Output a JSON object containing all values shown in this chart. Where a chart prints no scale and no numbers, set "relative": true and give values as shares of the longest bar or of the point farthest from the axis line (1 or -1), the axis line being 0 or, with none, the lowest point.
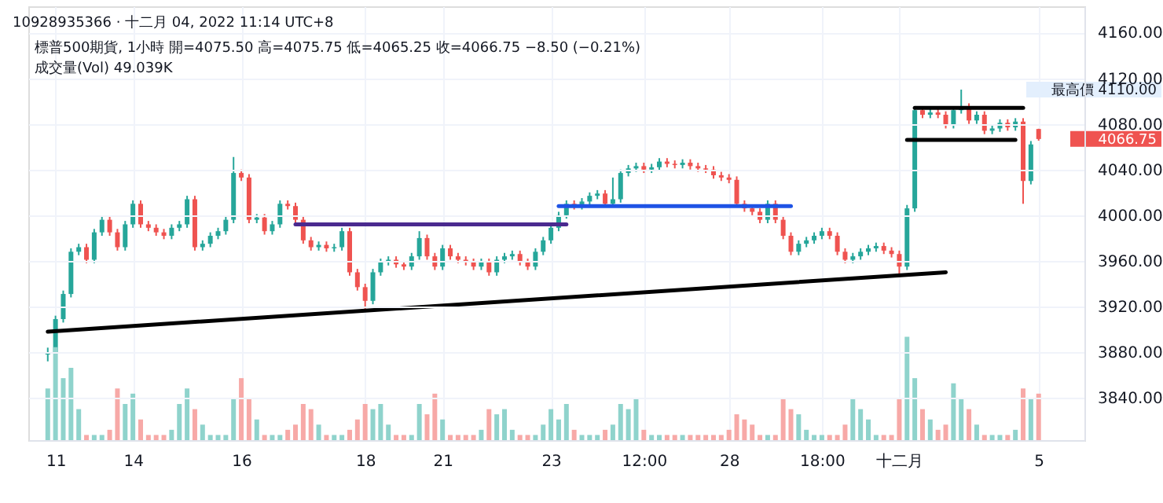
{
  "chart_data": [
    {
      "type": "candlestick",
      "title": "10928935366 · 十二月 04, 2022 11:14 UTC+8",
      "subtitle": "標普500期貨, 1小時  開=4075.50 高=4075.75 低=4065.25 收=4066.75 −8.50 (−0.21%)",
      "annotations": [
        "成交量(Vol) 49.039K",
        "4066.75",
        "最高價 4110.00"
      ],
      "categories": [
        null,
        "11",
        null,
        null,
        null,
        null,
        null,
        null,
        null,
        null,
        null,
        "14",
        null,
        null,
        null,
        null,
        null,
        null,
        null,
        null,
        null,
        null,
        null,
        null,
        null,
        "16",
        null,
        null,
        null,
        null,
        null,
        null,
        null,
        null,
        null,
        null,
        null,
        null,
        null,
        null,
        null,
        "18",
        null,
        null,
        null,
        null,
        null,
        null,
        null,
        null,
        null,
        "21",
        null,
        null,
        null,
        null,
        null,
        null,
        null,
        null,
        null,
        null,
        null,
        null,
        null,
        "23",
        null,
        null,
        null,
        null,
        null,
        null,
        null,
        null,
        null,
        null,
        null,
        "12:00",
        null,
        null,
        null,
        null,
        null,
        null,
        null,
        null,
        null,
        null,
        "28",
        null,
        null,
        null,
        null,
        null,
        null,
        null,
        null,
        null,
        null,
        null,
        "18:00",
        null,
        null,
        null,
        null,
        null,
        null,
        null,
        null,
        null,
        "十二月",
        null,
        null,
        null,
        null,
        null,
        null,
        null,
        null,
        null,
        null,
        null,
        null,
        null,
        null,
        null,
        null,
        null,
        "5"
      ],
      "ohlc": [
        [
          3878,
          3884,
          3872,
          3880
        ],
        [
          3880,
          3912,
          3877,
          3909
        ],
        [
          3909,
          3934,
          3906,
          3931
        ],
        [
          3931,
          3971,
          3928,
          3968
        ],
        [
          3968,
          3975,
          3965,
          3972
        ],
        [
          3972,
          3975,
          3958,
          3961
        ],
        [
          3961,
          3988,
          3958,
          3985
        ],
        [
          3985,
          3999,
          3982,
          3996
        ],
        [
          3996,
          3999,
          3982,
          3985
        ],
        [
          3985,
          3988,
          3969,
          3972
        ],
        [
          3972,
          3995,
          3969,
          3992
        ],
        [
          3992,
          4013,
          3989,
          4010
        ],
        [
          4010,
          4013,
          3989,
          3992
        ],
        [
          3992,
          3995,
          3986,
          3989
        ],
        [
          3989,
          3992,
          3982,
          3985
        ],
        [
          3985,
          3988,
          3979,
          3982
        ],
        [
          3982,
          3992,
          3979,
          3989
        ],
        [
          3989,
          3995,
          3986,
          3992
        ],
        [
          3992,
          4017,
          3989,
          4014
        ],
        [
          4014,
          4017,
          3969,
          3972
        ],
        [
          3972,
          3978,
          3969,
          3975
        ],
        [
          3975,
          3985,
          3972,
          3982
        ],
        [
          3982,
          3989,
          3979,
          3986
        ],
        [
          3986,
          3999,
          3983,
          3996
        ],
        [
          3996,
          4051,
          3993,
          4037
        ],
        [
          4037,
          4040,
          4030,
          4033
        ],
        [
          4033,
          4036,
          3993,
          3996
        ],
        [
          3996,
          4001,
          3993,
          3998
        ],
        [
          3998,
          4001,
          3983,
          3986
        ],
        [
          3986,
          3995,
          3983,
          3992
        ],
        [
          3992,
          4013,
          3989,
          4010
        ],
        [
          4010,
          4013,
          4005,
          4008
        ],
        [
          4008,
          4011,
          3993,
          3996
        ],
        [
          3996,
          3999,
          3975,
          3978
        ],
        [
          3978,
          3981,
          3969,
          3972
        ],
        [
          3972,
          3977,
          3969,
          3974
        ],
        [
          3974,
          3977,
          3968,
          3971
        ],
        [
          3971,
          3975,
          3968,
          3972
        ],
        [
          3972,
          3989,
          3969,
          3986
        ],
        [
          3986,
          3989,
          3947,
          3950
        ],
        [
          3950,
          3953,
          3934,
          3937
        ],
        [
          3937,
          3940,
          3917,
          3925
        ],
        [
          3925,
          3953,
          3922,
          3950
        ],
        [
          3950,
          3962,
          3947,
          3959
        ],
        [
          3959,
          3964,
          3956,
          3961
        ],
        [
          3961,
          3964,
          3954,
          3957
        ],
        [
          3957,
          3960,
          3952,
          3955
        ],
        [
          3955,
          3967,
          3952,
          3964
        ],
        [
          3964,
          3986,
          3961,
          3980
        ],
        [
          3980,
          3983,
          3961,
          3964
        ],
        [
          3964,
          3967,
          3952,
          3955
        ],
        [
          3955,
          3974,
          3952,
          3971
        ],
        [
          3971,
          3974,
          3961,
          3964
        ],
        [
          3964,
          3967,
          3958,
          3961
        ],
        [
          3961,
          3964,
          3956,
          3959
        ],
        [
          3959,
          3962,
          3952,
          3955
        ],
        [
          3955,
          3962,
          3952,
          3959
        ],
        [
          3959,
          3962,
          3947,
          3950
        ],
        [
          3950,
          3964,
          3947,
          3961
        ],
        [
          3961,
          3967,
          3958,
          3964
        ],
        [
          3964,
          3969,
          3961,
          3966
        ],
        [
          3966,
          3969,
          3956,
          3959
        ],
        [
          3959,
          3962,
          3952,
          3955
        ],
        [
          3955,
          3971,
          3952,
          3968
        ],
        [
          3968,
          3981,
          3965,
          3978
        ],
        [
          3978,
          3992,
          3975,
          3989
        ],
        [
          3989,
          4003,
          3986,
          4000
        ],
        [
          4000,
          4013,
          3997,
          4010
        ],
        [
          4010,
          4013,
          4005,
          4008
        ],
        [
          4008,
          4015,
          4005,
          4012
        ],
        [
          4012,
          4020,
          4009,
          4017
        ],
        [
          4017,
          4022,
          4014,
          4019
        ],
        [
          4019,
          4022,
          4007,
          4010
        ],
        [
          4010,
          4033,
          4007,
          4014
        ],
        [
          4014,
          4040,
          4011,
          4037
        ],
        [
          4037,
          4044,
          4034,
          4041
        ],
        [
          4041,
          4046,
          4038,
          4043
        ],
        [
          4043,
          4046,
          4037,
          4040
        ],
        [
          4040,
          4045,
          4037,
          4042
        ],
        [
          4042,
          4050,
          4039,
          4047
        ],
        [
          4047,
          4050,
          4042,
          4045
        ],
        [
          4045,
          4048,
          4041,
          4044
        ],
        [
          4044,
          4049,
          4041,
          4046
        ],
        [
          4046,
          4049,
          4040,
          4043
        ],
        [
          4043,
          4046,
          4038,
          4041
        ],
        [
          4041,
          4044,
          4037,
          4040
        ],
        [
          4040,
          4043,
          4032,
          4035
        ],
        [
          4035,
          4038,
          4030,
          4033
        ],
        [
          4033,
          4036,
          4028,
          4031
        ],
        [
          4031,
          4034,
          4007,
          4010
        ],
        [
          4010,
          4013,
          4003,
          4006
        ],
        [
          4006,
          4009,
          4000,
          4003
        ],
        [
          4003,
          4006,
          3993,
          3996
        ],
        [
          3996,
          4013,
          3993,
          4010
        ],
        [
          4010,
          4013,
          3993,
          3996
        ],
        [
          3996,
          3999,
          3979,
          3982
        ],
        [
          3982,
          3985,
          3965,
          3968
        ],
        [
          3968,
          3978,
          3965,
          3975
        ],
        [
          3975,
          3981,
          3972,
          3978
        ],
        [
          3978,
          3985,
          3975,
          3982
        ],
        [
          3982,
          3989,
          3979,
          3986
        ],
        [
          3986,
          3989,
          3979,
          3982
        ],
        [
          3982,
          3985,
          3965,
          3968
        ],
        [
          3968,
          3971,
          3958,
          3961
        ],
        [
          3961,
          3967,
          3958,
          3964
        ],
        [
          3964,
          3971,
          3961,
          3968
        ],
        [
          3968,
          3974,
          3965,
          3971
        ],
        [
          3971,
          3976,
          3968,
          3973
        ],
        [
          3973,
          3976,
          3966,
          3969
        ],
        [
          3969,
          3972,
          3963,
          3966
        ],
        [
          3966,
          3969,
          3947,
          3955
        ],
        [
          3955,
          4009,
          3952,
          4006
        ],
        [
          4006,
          4095,
          4003,
          4092
        ],
        [
          4092,
          4095,
          4085,
          4088
        ],
        [
          4088,
          4093,
          4085,
          4090
        ],
        [
          4090,
          4093,
          4085,
          4088
        ],
        [
          4088,
          4091,
          4076,
          4079
        ],
        [
          4079,
          4095,
          4076,
          4092
        ],
        [
          4092,
          4110,
          4089,
          4095
        ],
        [
          4095,
          4098,
          4080,
          4083
        ],
        [
          4083,
          4091,
          4080,
          4088
        ],
        [
          4088,
          4091,
          4071,
          4074
        ],
        [
          4074,
          4079,
          4071,
          4076
        ],
        [
          4076,
          4084,
          4073,
          4081
        ],
        [
          4081,
          4084,
          4074,
          4077
        ],
        [
          4077,
          4085,
          4074,
          4082
        ],
        [
          4082,
          4085,
          4010,
          4030
        ],
        [
          4030,
          4065,
          4027,
          4062
        ],
        [
          4075.5,
          4075.75,
          4065.25,
          4066.75
        ]
      ],
      "colors": [
        "#26a69a",
        "#26a69a",
        "#26a69a",
        "#26a69a",
        "#26a69a",
        "#ef5350",
        "#26a69a",
        "#26a69a",
        "#ef5350",
        "#ef5350",
        "#26a69a",
        "#26a69a",
        "#ef5350",
        "#ef5350",
        "#ef5350",
        "#ef5350",
        "#26a69a",
        "#26a69a",
        "#26a69a",
        "#ef5350",
        "#26a69a",
        "#26a69a",
        "#26a69a",
        "#26a69a",
        "#26a69a",
        "#ef5350",
        "#ef5350",
        "#26a69a",
        "#ef5350",
        "#26a69a",
        "#26a69a",
        "#ef5350",
        "#ef5350",
        "#ef5350",
        "#ef5350",
        "#26a69a",
        "#ef5350",
        "#26a69a",
        "#26a69a",
        "#ef5350",
        "#ef5350",
        "#ef5350",
        "#26a69a",
        "#26a69a",
        "#26a69a",
        "#ef5350",
        "#ef5350",
        "#26a69a",
        "#26a69a",
        "#ef5350",
        "#ef5350",
        "#26a69a",
        "#ef5350",
        "#ef5350",
        "#ef5350",
        "#ef5350",
        "#26a69a",
        "#ef5350",
        "#26a69a",
        "#26a69a",
        "#26a69a",
        "#ef5350",
        "#ef5350",
        "#26a69a",
        "#26a69a",
        "#26a69a",
        "#26a69a",
        "#26a69a",
        "#ef5350",
        "#26a69a",
        "#26a69a",
        "#26a69a",
        "#ef5350",
        "#26a69a",
        "#26a69a",
        "#26a69a",
        "#26a69a",
        "#ef5350",
        "#26a69a",
        "#26a69a",
        "#ef5350",
        "#ef5350",
        "#26a69a",
        "#ef5350",
        "#ef5350",
        "#ef5350",
        "#ef5350",
        "#ef5350",
        "#ef5350",
        "#ef5350",
        "#ef5350",
        "#ef5350",
        "#ef5350",
        "#26a69a",
        "#ef5350",
        "#ef5350",
        "#ef5350",
        "#26a69a",
        "#26a69a",
        "#26a69a",
        "#26a69a",
        "#ef5350",
        "#ef5350",
        "#ef5350",
        "#26a69a",
        "#26a69a",
        "#26a69a",
        "#26a69a",
        "#ef5350",
        "#ef5350",
        "#ef5350",
        "#26a69a",
        "#26a69a",
        "#ef5350",
        "#26a69a",
        "#ef5350",
        "#ef5350",
        "#26a69a",
        "#26a69a",
        "#ef5350",
        "#26a69a",
        "#ef5350",
        "#26a69a",
        "#26a69a",
        "#ef5350",
        "#26a69a",
        "#ef5350",
        "#26a69a",
        "#ef5350"
      ],
      "series": [
        {
          "type": "line",
          "values": [
            3898,
            null,
            null,
            null,
            null,
            null,
            null,
            null,
            null,
            null,
            null,
            null,
            null,
            null,
            null,
            null,
            null,
            null,
            null,
            null,
            null,
            null,
            null,
            null,
            null,
            null,
            null,
            null,
            null,
            null,
            null,
            null,
            null,
            null,
            null,
            null,
            null,
            null,
            null,
            null,
            null,
            null,
            null,
            null,
            null,
            null,
            null,
            null,
            null,
            null,
            null,
            null,
            null,
            null,
            null,
            null,
            null,
            null,
            null,
            null,
            null,
            null,
            null,
            null,
            null,
            null,
            null,
            null,
            null,
            null,
            null,
            null,
            null,
            null,
            null,
            null,
            null,
            null,
            null,
            null,
            null,
            null,
            null,
            null,
            null,
            null,
            null,
            null,
            null,
            null,
            null,
            null,
            null,
            null,
            null,
            null,
            null,
            null,
            null,
            null,
            null,
            null,
            null,
            null,
            null,
            null,
            null,
            null,
            null,
            null,
            null,
            null,
            null,
            null,
            null,
            null,
            3950,
            null,
            null,
            null,
            null,
            null,
            null,
            null,
            null,
            null,
            null,
            null,
            null
          ],
          "color": "#000000"
        },
        {
          "type": "line",
          "values": [
            null,
            null,
            null,
            null,
            null,
            null,
            null,
            null,
            null,
            null,
            null,
            null,
            null,
            null,
            null,
            null,
            null,
            null,
            null,
            null,
            null,
            null,
            null,
            null,
            null,
            null,
            null,
            null,
            null,
            null,
            null,
            null,
            3992,
            null,
            null,
            null,
            null,
            null,
            null,
            null,
            null,
            null,
            null,
            null,
            null,
            null,
            null,
            null,
            null,
            null,
            null,
            null,
            null,
            null,
            null,
            null,
            null,
            null,
            null,
            null,
            null,
            null,
            null,
            null,
            null,
            null,
            null,
            3992,
            null,
            null,
            null,
            null,
            null,
            null,
            null,
            null,
            null,
            null,
            null,
            null,
            null,
            null,
            null,
            null,
            null,
            null,
            null,
            null,
            null,
            null,
            null,
            null,
            null,
            null,
            null,
            null,
            null,
            null,
            null,
            null,
            null,
            null,
            null,
            null,
            null,
            null,
            null,
            null,
            null,
            null,
            null,
            null,
            null,
            null,
            null,
            null,
            null,
            null,
            null,
            null,
            null,
            null,
            null,
            null,
            null,
            null,
            null,
            null,
            null
          ],
          "color": "#4a2a8f"
        },
        {
          "type": "line",
          "values": [
            null,
            null,
            null,
            null,
            null,
            null,
            null,
            null,
            null,
            null,
            null,
            null,
            null,
            null,
            null,
            null,
            null,
            null,
            null,
            null,
            null,
            null,
            null,
            null,
            null,
            null,
            null,
            null,
            null,
            null,
            null,
            null,
            null,
            null,
            null,
            null,
            null,
            null,
            null,
            null,
            null,
            null,
            null,
            null,
            null,
            null,
            null,
            null,
            null,
            null,
            null,
            null,
            null,
            null,
            null,
            null,
            null,
            null,
            null,
            null,
            null,
            null,
            null,
            null,
            null,
            null,
            4008,
            null,
            null,
            null,
            null,
            null,
            null,
            null,
            null,
            null,
            null,
            null,
            null,
            null,
            null,
            null,
            null,
            null,
            null,
            null,
            null,
            null,
            null,
            null,
            null,
            null,
            null,
            null,
            null,
            null,
            4008,
            null,
            null,
            null,
            null,
            null,
            null,
            null,
            null,
            null,
            null,
            null,
            null,
            null,
            null,
            null,
            null,
            null,
            null,
            null,
            null,
            null,
            null,
            null,
            null,
            null,
            null,
            null,
            null,
            null,
            null,
            null,
            null
          ],
          "color": "#1e53e5"
        },
        {
          "type": "line",
          "values": [
            null,
            null,
            null,
            null,
            null,
            null,
            null,
            null,
            null,
            null,
            null,
            null,
            null,
            null,
            null,
            null,
            null,
            null,
            null,
            null,
            null,
            null,
            null,
            null,
            null,
            null,
            null,
            null,
            null,
            null,
            null,
            null,
            null,
            null,
            null,
            null,
            null,
            null,
            null,
            null,
            null,
            null,
            null,
            null,
            null,
            null,
            null,
            null,
            null,
            null,
            null,
            null,
            null,
            null,
            null,
            null,
            null,
            null,
            null,
            null,
            null,
            null,
            null,
            null,
            null,
            null,
            null,
            null,
            null,
            null,
            null,
            null,
            null,
            null,
            null,
            null,
            null,
            null,
            null,
            null,
            null,
            null,
            null,
            null,
            null,
            null,
            null,
            null,
            null,
            null,
            null,
            null,
            null,
            null,
            null,
            null,
            null,
            null,
            null,
            null,
            null,
            null,
            null,
            null,
            null,
            null,
            null,
            null,
            null,
            null,
            null,
            null,
            4094,
            null,
            null,
            null,
            null,
            null,
            null,
            null,
            null,
            null,
            null,
            null,
            null,
            null,
            4094,
            null,
            null
          ],
          "color": "#000000"
        },
        {
          "type": "line",
          "values": [
            null,
            null,
            null,
            null,
            null,
            null,
            null,
            null,
            null,
            null,
            null,
            null,
            null,
            null,
            null,
            null,
            null,
            null,
            null,
            null,
            null,
            null,
            null,
            null,
            null,
            null,
            null,
            null,
            null,
            null,
            null,
            null,
            null,
            null,
            null,
            null,
            null,
            null,
            null,
            null,
            null,
            null,
            null,
            null,
            null,
            null,
            null,
            null,
            null,
            null,
            null,
            null,
            null,
            null,
            null,
            null,
            null,
            null,
            null,
            null,
            null,
            null,
            null,
            null,
            null,
            null,
            null,
            null,
            null,
            null,
            null,
            null,
            null,
            null,
            null,
            null,
            null,
            null,
            null,
            null,
            null,
            null,
            null,
            null,
            null,
            null,
            null,
            null,
            null,
            null,
            null,
            null,
            null,
            null,
            null,
            null,
            null,
            null,
            null,
            null,
            null,
            null,
            null,
            null,
            null,
            null,
            null,
            null,
            null,
            null,
            null,
            4066,
            null,
            null,
            null,
            null,
            null,
            null,
            null,
            null,
            null,
            null,
            null,
            null,
            null,
            4066,
            null,
            null,
            null
          ],
          "color": "#000000"
        }
      ],
      "ylim": [
        3803,
        4183
      ],
      "yticks": [
        {
          "value": 3840,
          "label": "3840.00"
        },
        {
          "value": 3880,
          "label": "3880.00"
        },
        {
          "value": 3920,
          "label": "3920.00"
        },
        {
          "value": 3960,
          "label": "3960.00"
        },
        {
          "value": 4000,
          "label": "4000.00"
        },
        {
          "value": 4040,
          "label": "4040.00"
        },
        {
          "value": 4080,
          "label": "4080.00"
        },
        {
          "value": 4120,
          "label": "4120.00"
        },
        {
          "value": 4160,
          "label": "4160.00"
        }
      ],
      "grid": true
    },
    {
      "type": "bar",
      "relative": true,
      "values": [
        0.5,
        0.9,
        0.6,
        0.7,
        0.3,
        0.05,
        0.05,
        0.05,
        0.1,
        0.5,
        0.35,
        0.45,
        0.2,
        0.05,
        0.05,
        0.05,
        0.1,
        0.35,
        0.5,
        0.3,
        0.15,
        0.05,
        0.05,
        0.05,
        0.4,
        0.6,
        0.4,
        0.2,
        0.05,
        0.05,
        0.05,
        0.1,
        0.15,
        0.35,
        0.3,
        0.15,
        0.05,
        0.05,
        0.05,
        0.1,
        0.2,
        0.35,
        0.3,
        0.35,
        0.15,
        0.05,
        0.05,
        0.05,
        0.35,
        0.25,
        0.45,
        0.2,
        0.05,
        0.05,
        0.05,
        0.05,
        0.1,
        0.3,
        0.25,
        0.3,
        0.1,
        0.05,
        0.05,
        0.05,
        0.15,
        0.3,
        0.2,
        0.35,
        0.1,
        0.05,
        0.05,
        0.05,
        0.1,
        0.15,
        0.35,
        0.3,
        0.4,
        0.1,
        0.05,
        0.05,
        0.05,
        0.05,
        0.05,
        0.05,
        0.05,
        0.05,
        0.05,
        0.05,
        0.1,
        0.25,
        0.2,
        0.15,
        0.05,
        0.05,
        0.05,
        0.4,
        0.3,
        0.25,
        0.1,
        0.05,
        0.05,
        0.05,
        0.05,
        0.15,
        0.4,
        0.3,
        0.2,
        0.05,
        0.05,
        0.05,
        0.4,
        1,
        0.6,
        0.3,
        0.2,
        0.1,
        0.15,
        0.55,
        0.4,
        0.3,
        0.15,
        0.05,
        0.05,
        0.05,
        0.05,
        0.1,
        0.5,
        0.4,
        0.45
      ],
      "colors": [
        "#8fd3cc",
        "#8fd3cc",
        "#8fd3cc",
        "#8fd3cc",
        "#8fd3cc",
        "#f7a9a7",
        "#8fd3cc",
        "#8fd3cc",
        "#f7a9a7",
        "#f7a9a7",
        "#8fd3cc",
        "#8fd3cc",
        "#f7a9a7",
        "#f7a9a7",
        "#f7a9a7",
        "#f7a9a7",
        "#8fd3cc",
        "#8fd3cc",
        "#8fd3cc",
        "#f7a9a7",
        "#8fd3cc",
        "#8fd3cc",
        "#8fd3cc",
        "#8fd3cc",
        "#8fd3cc",
        "#f7a9a7",
        "#f7a9a7",
        "#8fd3cc",
        "#f7a9a7",
        "#8fd3cc",
        "#8fd3cc",
        "#f7a9a7",
        "#f7a9a7",
        "#f7a9a7",
        "#f7a9a7",
        "#8fd3cc",
        "#f7a9a7",
        "#8fd3cc",
        "#8fd3cc",
        "#f7a9a7",
        "#f7a9a7",
        "#f7a9a7",
        "#8fd3cc",
        "#8fd3cc",
        "#8fd3cc",
        "#f7a9a7",
        "#f7a9a7",
        "#8fd3cc",
        "#8fd3cc",
        "#f7a9a7",
        "#f7a9a7",
        "#8fd3cc",
        "#f7a9a7",
        "#f7a9a7",
        "#f7a9a7",
        "#f7a9a7",
        "#8fd3cc",
        "#f7a9a7",
        "#8fd3cc",
        "#8fd3cc",
        "#8fd3cc",
        "#f7a9a7",
        "#f7a9a7",
        "#8fd3cc",
        "#8fd3cc",
        "#8fd3cc",
        "#8fd3cc",
        "#8fd3cc",
        "#f7a9a7",
        "#8fd3cc",
        "#8fd3cc",
        "#8fd3cc",
        "#f7a9a7",
        "#8fd3cc",
        "#8fd3cc",
        "#8fd3cc",
        "#8fd3cc",
        "#f7a9a7",
        "#8fd3cc",
        "#8fd3cc",
        "#f7a9a7",
        "#f7a9a7",
        "#8fd3cc",
        "#f7a9a7",
        "#f7a9a7",
        "#f7a9a7",
        "#f7a9a7",
        "#f7a9a7",
        "#f7a9a7",
        "#f7a9a7",
        "#f7a9a7",
        "#f7a9a7",
        "#f7a9a7",
        "#8fd3cc",
        "#f7a9a7",
        "#f7a9a7",
        "#f7a9a7",
        "#8fd3cc",
        "#8fd3cc",
        "#8fd3cc",
        "#8fd3cc",
        "#f7a9a7",
        "#f7a9a7",
        "#f7a9a7",
        "#8fd3cc",
        "#8fd3cc",
        "#8fd3cc",
        "#8fd3cc",
        "#f7a9a7",
        "#f7a9a7",
        "#f7a9a7",
        "#8fd3cc",
        "#8fd3cc",
        "#f7a9a7",
        "#8fd3cc",
        "#f7a9a7",
        "#f7a9a7",
        "#8fd3cc",
        "#8fd3cc",
        "#f7a9a7",
        "#8fd3cc",
        "#f7a9a7",
        "#8fd3cc",
        "#8fd3cc",
        "#f7a9a7",
        "#8fd3cc",
        "#f7a9a7",
        "#8fd3cc",
        "#f7a9a7"
      ]
    }
  ]
}
